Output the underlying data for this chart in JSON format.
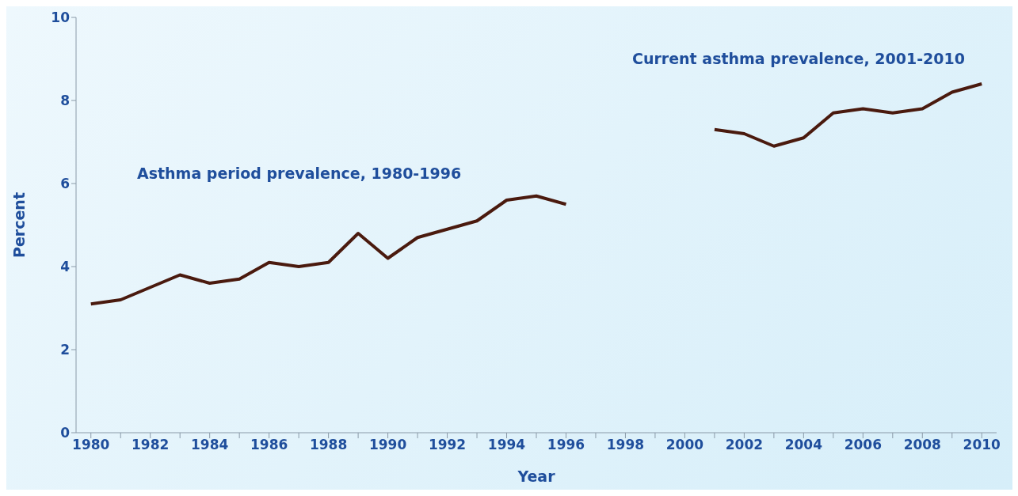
{
  "chart_data": {
    "type": "line",
    "xlabel": "Year",
    "ylabel": "Percent",
    "x": [
      1980,
      1981,
      1982,
      1983,
      1984,
      1985,
      1986,
      1987,
      1988,
      1989,
      1990,
      1991,
      1992,
      1993,
      1994,
      1995,
      1996,
      1997,
      1998,
      1999,
      2000,
      2001,
      2002,
      2003,
      2004,
      2005,
      2006,
      2007,
      2008,
      2009,
      2010
    ],
    "series": [
      {
        "color": "#4a1a0e",
        "values": [
          3.1,
          3.2,
          3.5,
          3.8,
          3.6,
          3.7,
          4.1,
          4.0,
          4.1,
          4.8,
          4.2,
          4.7,
          4.9,
          5.1,
          5.6,
          5.7,
          5.5,
          null,
          null,
          null,
          null,
          7.3,
          7.2,
          6.9,
          7.1,
          7.7,
          7.8,
          7.7,
          7.8,
          8.2,
          8.4
        ]
      }
    ],
    "xlim": [
      1979.5,
      2010.5
    ],
    "xticks": [
      1980,
      {
        "value": 1981,
        "label": null
      },
      1982,
      {
        "value": 1983,
        "label": null
      },
      1984,
      {
        "value": 1985,
        "label": null
      },
      1986,
      {
        "value": 1987,
        "label": null
      },
      1988,
      {
        "value": 1989,
        "label": null
      },
      1990,
      {
        "value": 1991,
        "label": null
      },
      1992,
      {
        "value": 1993,
        "label": null
      },
      1994,
      {
        "value": 1995,
        "label": null
      },
      1996,
      {
        "value": 1997,
        "label": null
      },
      1998,
      {
        "value": 1999,
        "label": null
      },
      2000,
      {
        "value": 2001,
        "label": null
      },
      2002,
      {
        "value": 2003,
        "label": null
      },
      2004,
      {
        "value": 2005,
        "label": null
      },
      2006,
      {
        "value": 2007,
        "label": null
      },
      2008,
      {
        "value": 2009,
        "label": null
      },
      2010
    ],
    "ylim": [
      0,
      10
    ],
    "yticks": [
      0,
      2,
      4,
      6,
      8,
      10
    ],
    "annotations": [
      "Asthma period prevalence, 1980-1996",
      "Current asthma prevalence, 2001-2010"
    ],
    "grid": false,
    "legend": false,
    "marker": "none",
    "line_style": "solid"
  }
}
